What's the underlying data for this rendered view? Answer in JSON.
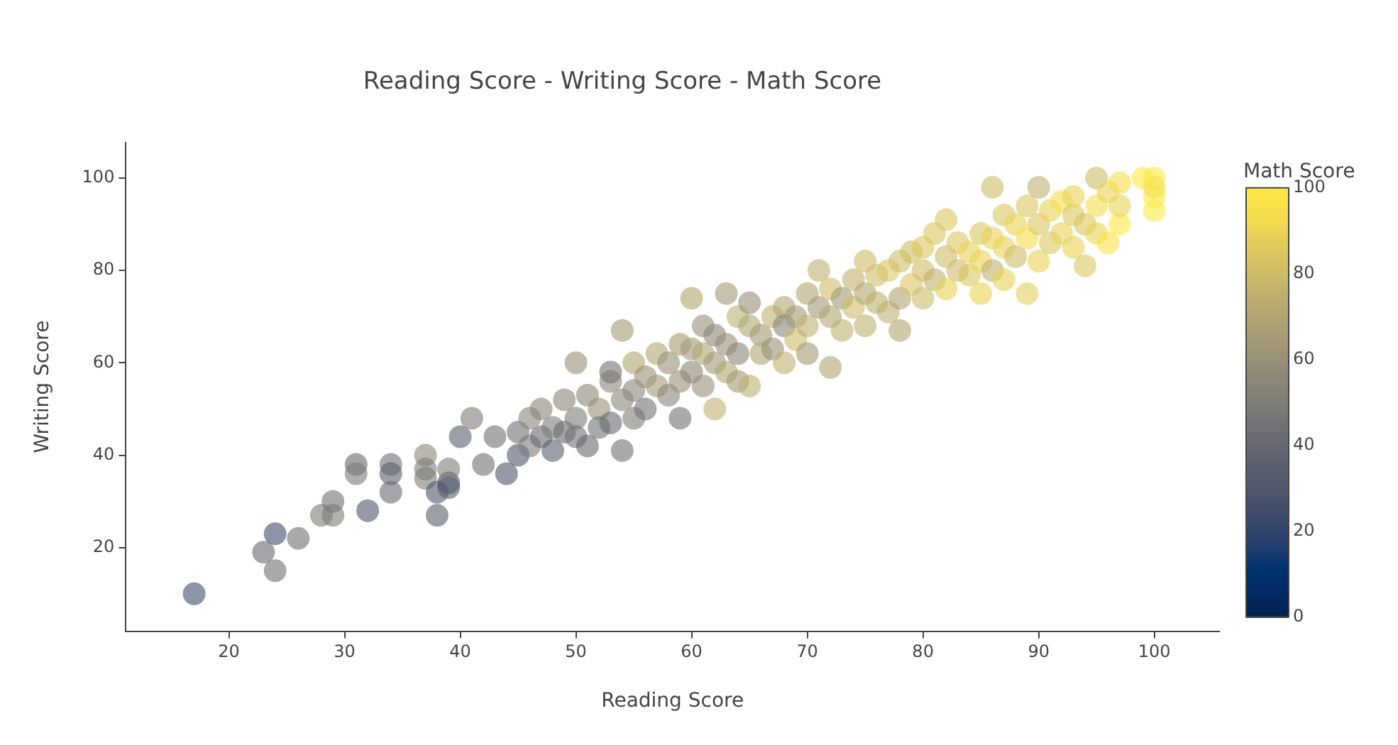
{
  "chart_data": {
    "type": "scatter",
    "title": "Reading Score - Writing Score - Math Score",
    "xlabel": "Reading Score",
    "ylabel": "Writing Score",
    "clabel": "Math Score",
    "x": [
      17,
      23,
      24,
      24,
      26,
      28,
      29,
      29,
      31,
      31,
      32,
      34,
      34,
      34,
      37,
      37,
      37,
      38,
      38,
      39,
      39,
      39,
      40,
      41,
      42,
      43,
      44,
      45,
      45,
      46,
      46,
      47,
      47,
      48,
      48,
      49,
      49,
      50,
      50,
      50,
      51,
      51,
      52,
      52,
      53,
      53,
      53,
      54,
      54,
      54,
      55,
      55,
      55,
      56,
      56,
      57,
      57,
      58,
      58,
      59,
      59,
      59,
      60,
      60,
      60,
      61,
      61,
      61,
      62,
      62,
      62,
      63,
      63,
      63,
      64,
      64,
      64,
      65,
      65,
      65,
      66,
      66,
      67,
      67,
      68,
      68,
      68,
      69,
      69,
      70,
      70,
      70,
      71,
      71,
      72,
      72,
      72,
      73,
      73,
      74,
      74,
      75,
      75,
      75,
      76,
      76,
      77,
      77,
      78,
      78,
      78,
      79,
      79,
      80,
      80,
      80,
      81,
      81,
      82,
      82,
      82,
      83,
      83,
      84,
      84,
      85,
      85,
      85,
      86,
      86,
      86,
      87,
      87,
      87,
      88,
      88,
      89,
      89,
      89,
      90,
      90,
      90,
      91,
      91,
      92,
      92,
      93,
      93,
      93,
      94,
      94,
      95,
      95,
      95,
      96,
      96,
      97,
      97,
      97,
      99,
      100,
      100,
      100,
      100
    ],
    "values": [
      10,
      19,
      23,
      15,
      22,
      27,
      30,
      27,
      38,
      36,
      28,
      38,
      36,
      32,
      40,
      37,
      35,
      32,
      27,
      34,
      33,
      37,
      44,
      48,
      38,
      44,
      36,
      40,
      45,
      42,
      48,
      50,
      44,
      46,
      41,
      45,
      52,
      48,
      44,
      60,
      53,
      42,
      50,
      46,
      56,
      47,
      58,
      52,
      41,
      67,
      60,
      54,
      48,
      57,
      50,
      55,
      62,
      53,
      60,
      64,
      56,
      48,
      74,
      58,
      63,
      62,
      55,
      68,
      60,
      50,
      66,
      75,
      58,
      64,
      70,
      62,
      56,
      68,
      73,
      55,
      66,
      62,
      70,
      63,
      72,
      68,
      60,
      70,
      65,
      75,
      68,
      62,
      80,
      72,
      70,
      59,
      76,
      74,
      67,
      78,
      72,
      75,
      68,
      82,
      79,
      73,
      71,
      80,
      82,
      74,
      67,
      84,
      77,
      80,
      85,
      74,
      78,
      88,
      83,
      76,
      91,
      86,
      80,
      84,
      79,
      88,
      82,
      75,
      98,
      87,
      80,
      92,
      85,
      78,
      90,
      83,
      94,
      87,
      75,
      98,
      90,
      82,
      93,
      86,
      95,
      88,
      92,
      85,
      96,
      90,
      81,
      100,
      94,
      88,
      86,
      97,
      99,
      90,
      94,
      100,
      100,
      96,
      93,
      98
    ],
    "cvalues": [
      25,
      40,
      25,
      45,
      45,
      50,
      45,
      50,
      40,
      50,
      30,
      45,
      35,
      40,
      55,
      50,
      50,
      30,
      35,
      25,
      35,
      50,
      35,
      50,
      45,
      45,
      30,
      30,
      45,
      50,
      55,
      55,
      40,
      50,
      35,
      40,
      55,
      50,
      45,
      60,
      55,
      40,
      60,
      45,
      55,
      40,
      45,
      55,
      45,
      65,
      70,
      55,
      50,
      60,
      45,
      65,
      70,
      55,
      60,
      65,
      60,
      45,
      70,
      55,
      65,
      70,
      60,
      60,
      65,
      75,
      55,
      65,
      70,
      60,
      75,
      55,
      65,
      70,
      60,
      75,
      65,
      70,
      75,
      60,
      70,
      55,
      75,
      65,
      80,
      70,
      75,
      65,
      75,
      65,
      70,
      70,
      80,
      65,
      75,
      75,
      80,
      70,
      75,
      80,
      80,
      75,
      75,
      85,
      80,
      70,
      70,
      80,
      85,
      80,
      85,
      80,
      75,
      85,
      80,
      90,
      85,
      85,
      80,
      90,
      85,
      85,
      90,
      90,
      80,
      90,
      75,
      85,
      90,
      90,
      90,
      80,
      85,
      95,
      88,
      75,
      85,
      90,
      90,
      85,
      95,
      90,
      85,
      90,
      90,
      85,
      85,
      80,
      95,
      90,
      98,
      90,
      95,
      100,
      90,
      100,
      100,
      100,
      100,
      95
    ],
    "clim": [
      0,
      100
    ],
    "cticks": [
      0,
      20,
      40,
      60,
      80,
      100
    ],
    "xlim": [
      11.1,
      105.6
    ],
    "xticks": [
      20,
      30,
      40,
      50,
      60,
      70,
      80,
      90,
      100
    ],
    "ylim": [
      1.9,
      107.7
    ],
    "yticks": [
      20,
      40,
      60,
      80,
      100
    ],
    "grid": false,
    "legend": false,
    "marker": "circle"
  }
}
